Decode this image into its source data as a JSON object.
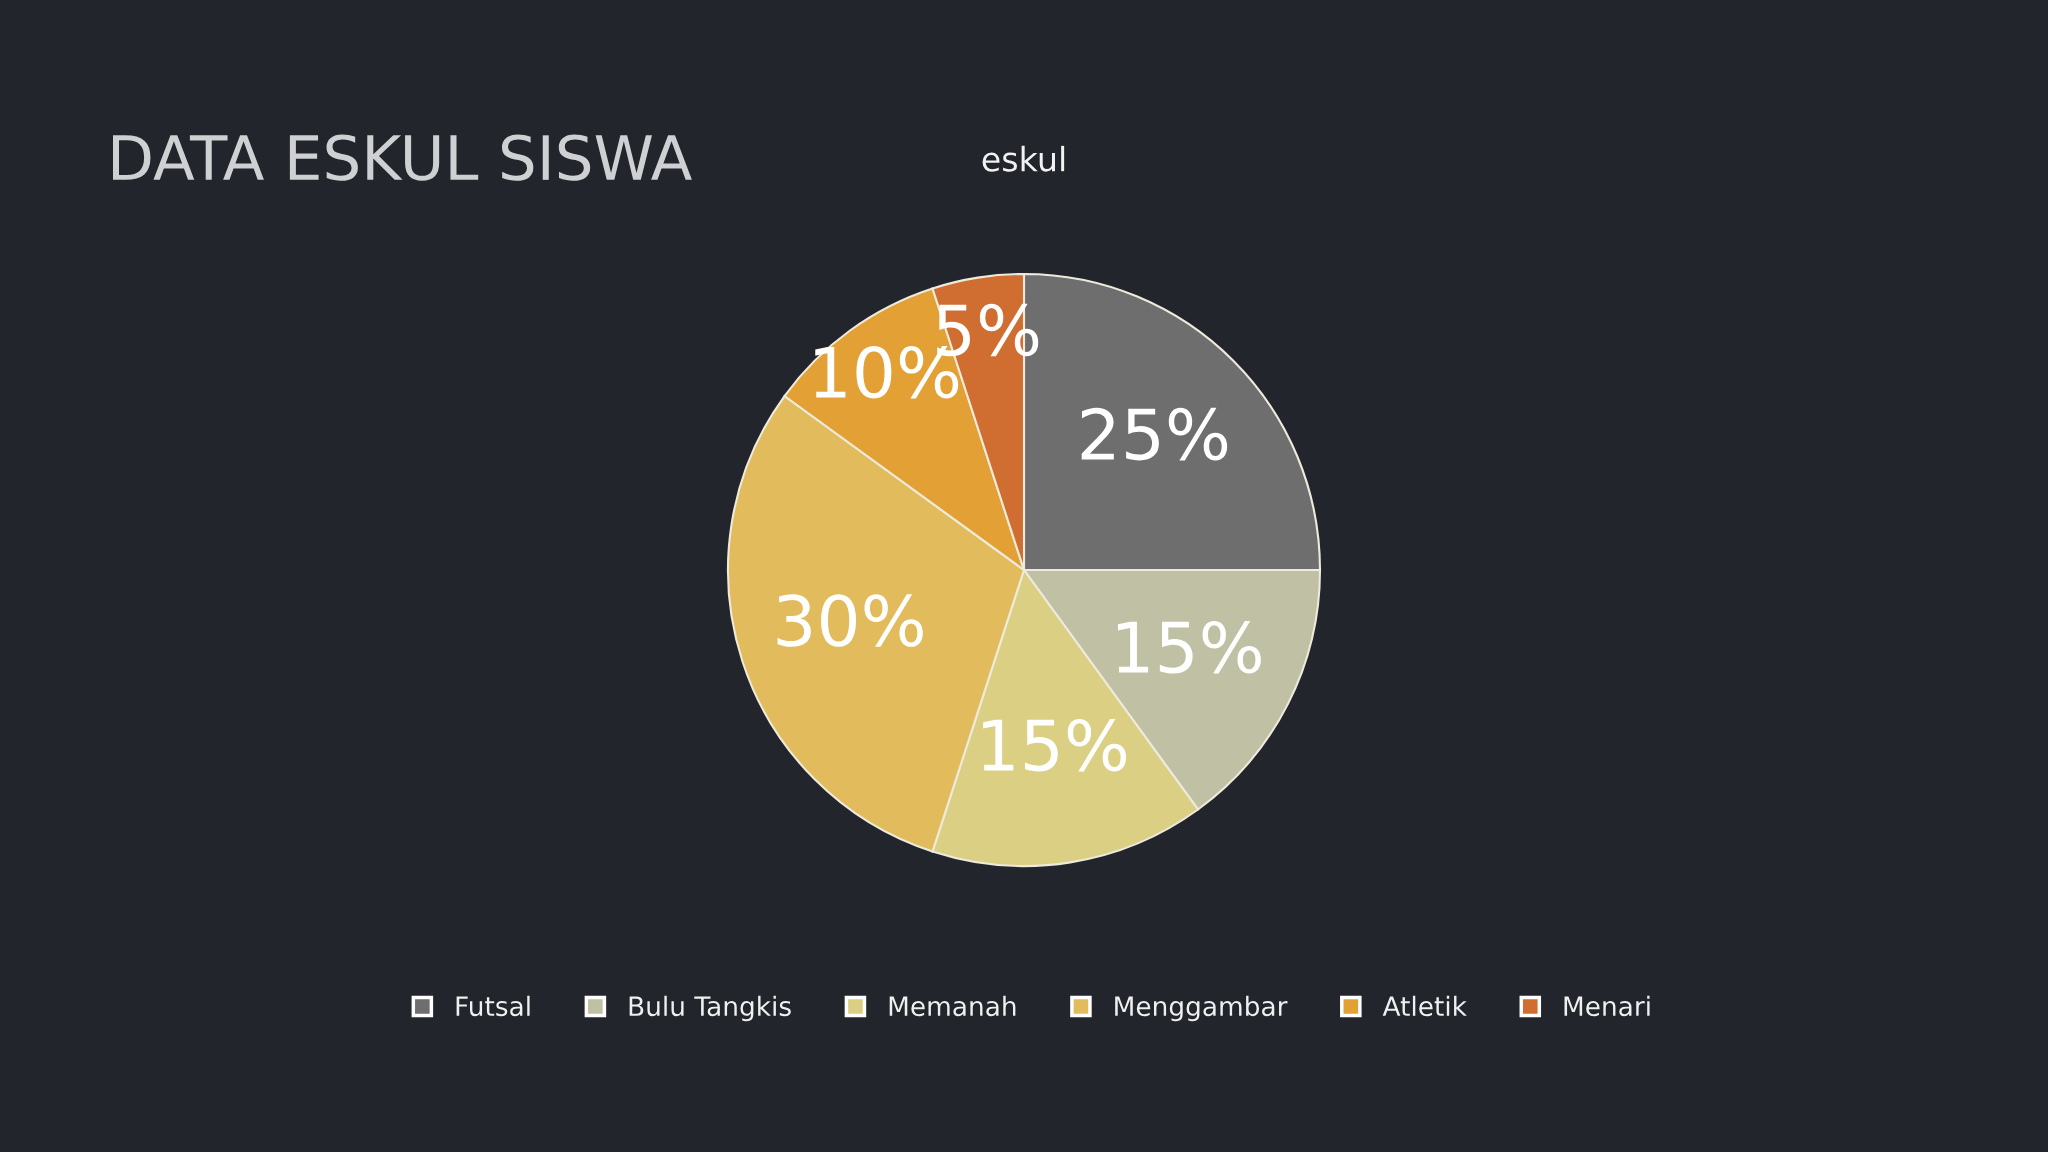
{
  "chart_data": {
    "type": "pie",
    "title": "DATA ESKUL SISWA",
    "subtitle": "eskul",
    "categories": [
      "Futsal",
      "Bulu Tangkis",
      "Memanah",
      "Menggambar",
      "Atletik",
      "Menari"
    ],
    "values": [
      25,
      15,
      15,
      30,
      10,
      5
    ],
    "value_labels": [
      "25%",
      "15%",
      "15%",
      "30%",
      "10%",
      "5%"
    ],
    "colors": [
      "#6e6e6e",
      "#c0c0a4",
      "#dbcf84",
      "#e2bc5c",
      "#e3a035",
      "#cf6e30"
    ],
    "legend": "bottom"
  }
}
